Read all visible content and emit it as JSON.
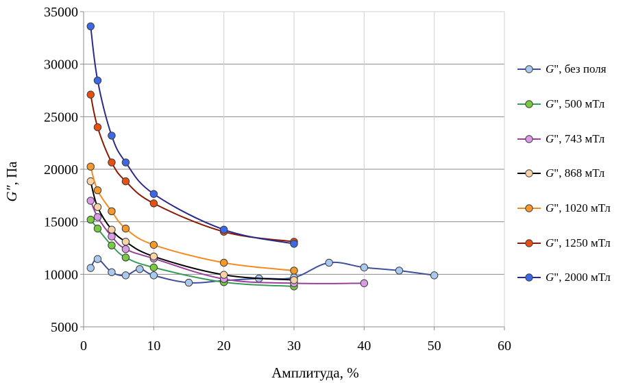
{
  "chart_data": {
    "type": "line",
    "title": "",
    "xlabel": "Амплитуда, %",
    "ylabel": "G\", Па",
    "xlim": [
      0,
      60
    ],
    "ylim": [
      5000,
      35000
    ],
    "xticks": [
      "0",
      "10",
      "20",
      "30",
      "40",
      "50",
      "60"
    ],
    "yticks": [
      "5000",
      "10000",
      "15000",
      "20000",
      "25000",
      "30000",
      "35000"
    ],
    "grid": true,
    "legend_position": "right",
    "series": [
      {
        "name": "G\", без поля",
        "line": "#3f4f9f",
        "fill": "#a9c9ee",
        "label_prefix": "G",
        "label_rest": "\", без поля",
        "x": [
          1,
          2,
          4,
          6,
          8,
          10,
          15,
          20,
          25,
          30,
          35,
          40,
          45,
          50
        ],
        "y": [
          10600,
          11450,
          10200,
          9900,
          10500,
          9900,
          9200,
          9400,
          9600,
          9700,
          11100,
          10650,
          10350,
          9900
        ]
      },
      {
        "name": "G\", 500 мТл",
        "line": "#3a9a57",
        "fill": "#7ac943",
        "label_prefix": "G",
        "label_rest": "\", 500 мТл",
        "x": [
          1,
          2,
          4,
          6,
          10,
          20,
          30
        ],
        "y": [
          15200,
          14350,
          12750,
          11600,
          10650,
          9250,
          8850
        ]
      },
      {
        "name": "G\", 743 мТл",
        "line": "#9b3f9e",
        "fill": "#d99be6",
        "label_prefix": "G",
        "label_rest": "\", 743 мТл",
        "x": [
          1,
          2,
          4,
          6,
          10,
          20,
          30,
          40
        ],
        "y": [
          17000,
          15450,
          13600,
          12400,
          11500,
          9550,
          9150,
          9150
        ]
      },
      {
        "name": "G\", 868 мТл",
        "line": "#000000",
        "fill": "#f9d3a8",
        "label_prefix": "G",
        "label_rest": "\", 868 мТл",
        "x": [
          1,
          2,
          4,
          6,
          10,
          20,
          30
        ],
        "y": [
          18850,
          16400,
          14250,
          13100,
          11700,
          9950,
          9450
        ]
      },
      {
        "name": "G\", 1020 мТл",
        "line": "#f58a1f",
        "fill": "#f59a2a",
        "label_prefix": "G",
        "label_rest": "\", 1020 мТл",
        "x": [
          1,
          2,
          4,
          6,
          10,
          20,
          30
        ],
        "y": [
          20250,
          18000,
          16000,
          14350,
          12800,
          11100,
          10350
        ]
      },
      {
        "name": "G\", 1250 мТл",
        "line": "#8b1a00",
        "fill": "#e84f12",
        "label_prefix": "G",
        "label_rest": "\", 1250 мТл",
        "x": [
          1,
          2,
          4,
          6,
          10,
          20,
          30
        ],
        "y": [
          27100,
          24000,
          20650,
          18850,
          16750,
          14050,
          13100
        ]
      },
      {
        "name": "G\", 2000 мТл",
        "line": "#2a2a8c",
        "fill": "#3d68e6",
        "label_prefix": "G",
        "label_rest": "\", 2000 мТл",
        "x": [
          1,
          2,
          4,
          6,
          10,
          20,
          30
        ],
        "y": [
          33600,
          28450,
          23200,
          20650,
          17650,
          14250,
          12900
        ]
      }
    ]
  }
}
